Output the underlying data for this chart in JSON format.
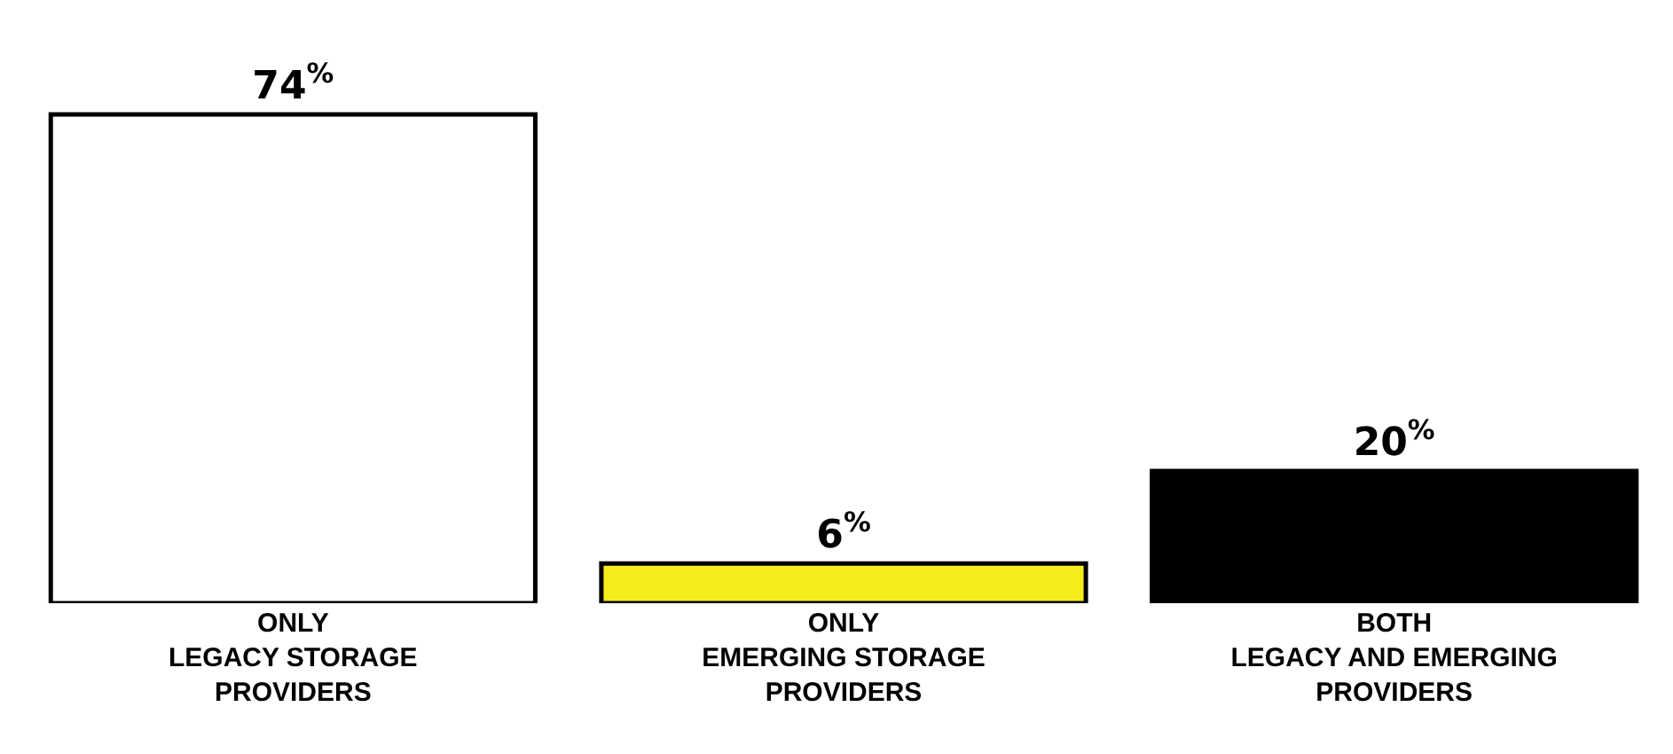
{
  "chart_data": {
    "type": "bar",
    "categories": [
      "ONLY\nLEGACY STORAGE\nPROVIDERS",
      "ONLY\nEMERGING STORAGE\nPROVIDERS",
      "BOTH\nLEGACY AND EMERGING\nPROVIDERS"
    ],
    "values": [
      74,
      6,
      20
    ],
    "colors": [
      "#ffffff",
      "#f7ec1b",
      "#000000"
    ],
    "value_labels": [
      "74$^{%}$",
      "6$^{%}$",
      "20$^{%}$"
    ],
    "grid": false,
    "legend": false
  }
}
